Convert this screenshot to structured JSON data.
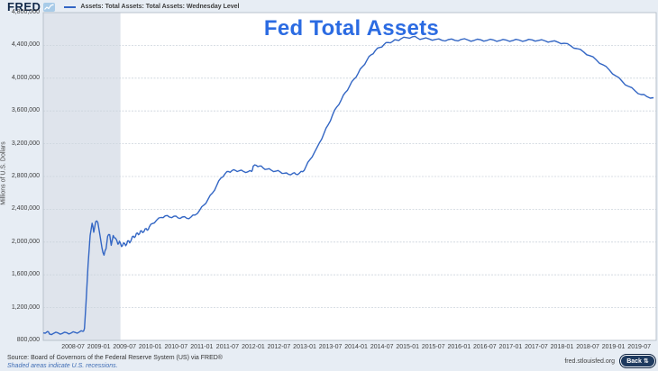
{
  "header": {
    "logo_text": "FRED",
    "legend_label": "Assets: Total Assets: Total Assets: Wednesday Level"
  },
  "chart_data": {
    "type": "line",
    "title": "Fed Total Assets",
    "xlabel": "",
    "ylabel": "Millions of U.S. Dollars",
    "ylim": [
      800000,
      4800000
    ],
    "y_tick_step": 400000,
    "xlim": [
      2007.92,
      2019.83
    ],
    "x_tick_labels": [
      "2008-07",
      "2009-01",
      "2009-07",
      "2010-01",
      "2010-07",
      "2011-01",
      "2011-07",
      "2012-01",
      "2012-07",
      "2013-01",
      "2013-07",
      "2014-01",
      "2014-07",
      "2015-01",
      "2015-07",
      "2016-01",
      "2016-07",
      "2017-01",
      "2017-07",
      "2018-01",
      "2018-07",
      "2019-01",
      "2019-07"
    ],
    "grid": "horizontal",
    "legend_position": "top-left",
    "recession_bands": [
      {
        "start": 2007.92,
        "end": 2009.42
      }
    ],
    "series": [
      {
        "name": "Assets: Total Assets: Total Assets: Wednesday Level",
        "color": "#3366c4",
        "points": [
          [
            2007.92,
            891000
          ],
          [
            2008.0,
            908000
          ],
          [
            2008.04,
            878000
          ],
          [
            2008.12,
            886000
          ],
          [
            2008.21,
            890000
          ],
          [
            2008.29,
            885000
          ],
          [
            2008.38,
            892000
          ],
          [
            2008.46,
            889000
          ],
          [
            2008.54,
            897000
          ],
          [
            2008.62,
            902000
          ],
          [
            2008.69,
            910000
          ],
          [
            2008.72,
            945000
          ],
          [
            2008.75,
            1250000
          ],
          [
            2008.79,
            1720000
          ],
          [
            2008.83,
            2080000
          ],
          [
            2008.87,
            2230000
          ],
          [
            2008.9,
            2120000
          ],
          [
            2008.94,
            2250000
          ],
          [
            2008.98,
            2240000
          ],
          [
            2009.02,
            2090000
          ],
          [
            2009.06,
            1930000
          ],
          [
            2009.1,
            1840000
          ],
          [
            2009.14,
            1920000
          ],
          [
            2009.17,
            2070000
          ],
          [
            2009.21,
            2090000
          ],
          [
            2009.24,
            1960000
          ],
          [
            2009.28,
            2080000
          ],
          [
            2009.32,
            2050000
          ],
          [
            2009.37,
            1975000
          ],
          [
            2009.4,
            2010000
          ],
          [
            2009.44,
            1945000
          ],
          [
            2009.48,
            1990000
          ],
          [
            2009.52,
            1955000
          ],
          [
            2009.56,
            2015000
          ],
          [
            2009.6,
            1990000
          ],
          [
            2009.65,
            2065000
          ],
          [
            2009.69,
            2055000
          ],
          [
            2009.73,
            2105000
          ],
          [
            2009.77,
            2090000
          ],
          [
            2009.81,
            2135000
          ],
          [
            2009.85,
            2115000
          ],
          [
            2009.9,
            2160000
          ],
          [
            2009.94,
            2145000
          ],
          [
            2009.98,
            2185000
          ],
          [
            2010.04,
            2225000
          ],
          [
            2010.12,
            2265000
          ],
          [
            2010.21,
            2300000
          ],
          [
            2010.29,
            2320000
          ],
          [
            2010.37,
            2305000
          ],
          [
            2010.46,
            2315000
          ],
          [
            2010.54,
            2295000
          ],
          [
            2010.62,
            2305000
          ],
          [
            2010.71,
            2290000
          ],
          [
            2010.79,
            2305000
          ],
          [
            2010.87,
            2330000
          ],
          [
            2010.96,
            2390000
          ],
          [
            2011.04,
            2450000
          ],
          [
            2011.12,
            2520000
          ],
          [
            2011.21,
            2600000
          ],
          [
            2011.29,
            2690000
          ],
          [
            2011.37,
            2780000
          ],
          [
            2011.46,
            2840000
          ],
          [
            2011.52,
            2860000
          ],
          [
            2011.58,
            2868000
          ],
          [
            2011.65,
            2875000
          ],
          [
            2011.73,
            2870000
          ],
          [
            2011.81,
            2862000
          ],
          [
            2011.9,
            2858000
          ],
          [
            2011.97,
            2862000
          ],
          [
            2012.0,
            2925000
          ],
          [
            2012.06,
            2935000
          ],
          [
            2012.12,
            2928000
          ],
          [
            2012.19,
            2905000
          ],
          [
            2012.27,
            2890000
          ],
          [
            2012.35,
            2878000
          ],
          [
            2012.44,
            2865000
          ],
          [
            2012.52,
            2858000
          ],
          [
            2012.6,
            2840000
          ],
          [
            2012.69,
            2825000
          ],
          [
            2012.77,
            2840000
          ],
          [
            2012.83,
            2828000
          ],
          [
            2012.9,
            2843000
          ],
          [
            2012.96,
            2858000
          ],
          [
            2013.02,
            2915000
          ],
          [
            2013.1,
            3005000
          ],
          [
            2013.19,
            3095000
          ],
          [
            2013.29,
            3215000
          ],
          [
            2013.37,
            3320000
          ],
          [
            2013.46,
            3435000
          ],
          [
            2013.54,
            3550000
          ],
          [
            2013.62,
            3645000
          ],
          [
            2013.71,
            3735000
          ],
          [
            2013.79,
            3825000
          ],
          [
            2013.87,
            3900000
          ],
          [
            2013.96,
            3990000
          ],
          [
            2014.04,
            4060000
          ],
          [
            2014.12,
            4140000
          ],
          [
            2014.21,
            4220000
          ],
          [
            2014.29,
            4285000
          ],
          [
            2014.37,
            4335000
          ],
          [
            2014.46,
            4375000
          ],
          [
            2014.54,
            4410000
          ],
          [
            2014.62,
            4435000
          ],
          [
            2014.71,
            4450000
          ],
          [
            2014.79,
            4465000
          ],
          [
            2014.87,
            4480000
          ],
          [
            2014.98,
            4495000
          ],
          [
            2015.1,
            4505000
          ],
          [
            2015.19,
            4490000
          ],
          [
            2015.29,
            4480000
          ],
          [
            2015.42,
            4478000
          ],
          [
            2015.54,
            4472000
          ],
          [
            2015.67,
            4462000
          ],
          [
            2015.79,
            4470000
          ],
          [
            2015.92,
            4462000
          ],
          [
            2016.04,
            4472000
          ],
          [
            2016.17,
            4466000
          ],
          [
            2016.29,
            4460000
          ],
          [
            2016.42,
            4468000
          ],
          [
            2016.54,
            4460000
          ],
          [
            2016.67,
            4466000
          ],
          [
            2016.79,
            4458000
          ],
          [
            2016.92,
            4464000
          ],
          [
            2017.04,
            4458000
          ],
          [
            2017.17,
            4465000
          ],
          [
            2017.29,
            4457000
          ],
          [
            2017.42,
            4467000
          ],
          [
            2017.54,
            4460000
          ],
          [
            2017.67,
            4455000
          ],
          [
            2017.79,
            4448000
          ],
          [
            2017.92,
            4440000
          ],
          [
            2018.04,
            4425000
          ],
          [
            2018.17,
            4395000
          ],
          [
            2018.29,
            4360000
          ],
          [
            2018.42,
            4320000
          ],
          [
            2018.54,
            4275000
          ],
          [
            2018.67,
            4220000
          ],
          [
            2018.79,
            4165000
          ],
          [
            2018.92,
            4100000
          ],
          [
            2019.04,
            4030000
          ],
          [
            2019.17,
            3960000
          ],
          [
            2019.29,
            3900000
          ],
          [
            2019.42,
            3845000
          ],
          [
            2019.54,
            3800000
          ],
          [
            2019.65,
            3775000
          ],
          [
            2019.78,
            3762000
          ]
        ]
      }
    ]
  },
  "footer": {
    "source": "Source: Board of Governors of the Federal Reserve System (US) via FRED®",
    "shaded_note": "Shaded areas indicate U.S. recessions.",
    "site": "fred.stlouisfed.org",
    "back_label": "Back ⇅"
  },
  "colors": {
    "background": "#e7edf4",
    "plot_background": "#ffffff",
    "recession_band": "#dfe4ec",
    "gridline": "#ccd3dc",
    "plot_border": "#b9c2cc",
    "line": "#3366c4",
    "title": "#2b6be2",
    "back_button": "#1e3a5f"
  }
}
